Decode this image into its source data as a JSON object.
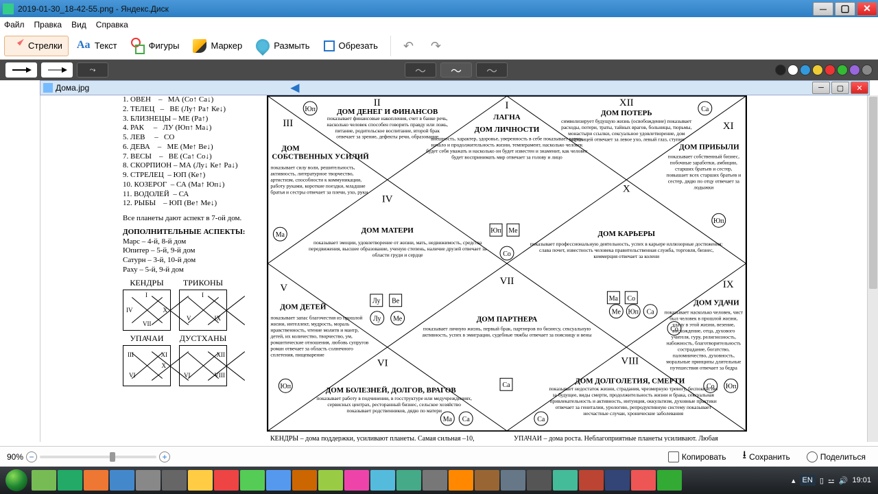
{
  "window": {
    "title": "2019-01-30_18-42-55.png - Яндекс.Диск",
    "menu": [
      "Файл",
      "Правка",
      "Вид",
      "Справка"
    ],
    "tools": {
      "arrows": "Стрелки",
      "text": "Текст",
      "shapes": "Фигуры",
      "marker": "Маркер",
      "blur": "Размыть",
      "crop": "Обрезать"
    },
    "tab": "Дома.jpg",
    "zoompct": "90%",
    "bottom": {
      "copy": "Копировать",
      "save": "Сохранить",
      "share": "Поделиться"
    }
  },
  "colors": {
    "titlebar": "#3a8bd0",
    "toolbar_sel": "#fceee0",
    "subbar": "#4a4a4a",
    "dots": [
      "#222",
      "#fff",
      "#39d",
      "#ec3",
      "#e33",
      "#3b3",
      "#96d",
      "#888"
    ]
  },
  "doc": {
    "zodiac": [
      "1. ОВЕН    –   МА (Co↑ Ca↓)",
      "2. ТЕЛЕЦ   –   ВЕ (Лу↑ Ра↑ Ке↓)",
      "3. БЛИЗНЕЦЫ – МЕ (Ра↑)",
      "4. РАК     –   ЛУ (Юп↑ Ма↓)",
      "5. ЛЕВ     –   СО",
      "6. ДЕВА    –   МЕ (Ме↑ Ве↓)",
      "7. ВЕСЫ    –   ВЕ (Са↑ Со↓)",
      "8. СКОРПИОН – МА (Лу↓ Ке↑ Ра↓)",
      "9. СТРЕЛЕЦ  – ЮП (Ке↑)",
      "10. КОЗЕРОГ  – СА (Ма↑ Юп↓)",
      "11. ВОДОЛЕЙ  – СА",
      "12. РЫБЫ    – ЮП (Ве↑ Ме↓)"
    ],
    "note1": "Все планеты дают аспект в 7-ой дом.",
    "aspects_h": "ДОПОЛНИТЕЛЬНЫЕ АСПЕКТЫ:",
    "aspects": [
      "Марс – 4-й, 8-й дом",
      "Юпитер – 5-й, 9-й дом",
      "Сатурн – 3-й, 10-й дом",
      "Раху – 5-й, 9-й дом"
    ],
    "groups": {
      "kendry": "КЕНДРЫ",
      "trikony": "ТРИКОНЫ",
      "upachi": "УПАЧАИ",
      "dusthany": "ДУСТХАНЫ"
    },
    "houses": {
      "1": {
        "num": "I",
        "title": "ЛАГНА",
        "sub": "ДОМ ЛИЧНОСТИ",
        "txt": "внешность, характер, здоровье, уверенность в себе показывает карму, начало и продолжительность жизни, темперамент, насколько человек будет себя уважать и насколько он будет известен и знаменит, как человек будет воспринимать мир отвечает за голову и лицо"
      },
      "2": {
        "num": "II",
        "title": "ДОМ ДЕНЕГ И ФИНАНСОВ",
        "txt": "показывает финансовые накопления, счет в банке речь, насколько человек способен говорить правду или ложь, питание, родительское воспитание, второй брак отвечает за зрение, дефекты речи, образование"
      },
      "3": {
        "num": "III",
        "title": "ДОМ СОБСТВЕННЫХ УСИЛИЙ",
        "txt": "показывает силу воли, решительность, активность, литературное творчество, артистизм, способности к коммуникации, работу руками, короткие поездки, младшие братья и сестры отвечает за плечи, ухо, руки"
      },
      "4": {
        "num": "IV",
        "title": "ДОМ МАТЕРИ",
        "txt": "показывает эмоции, удовлетворение от жизни, мать, недвижимость, средства передвижения, высшее образование, ученую степень, наличие друзей отвечает за области груди и сердце"
      },
      "5": {
        "num": "V",
        "title": "ДОМ ДЕТЕЙ",
        "txt": "показывает запас благочестия из прошлой жизни, интеллект, мудрость, мораль нравственность, чтение молитв и мантр, детей, их количество, творчество, ум, романтические отношения, любовь супругов роман отвечает за область солнечного сплетения, пищеварение"
      },
      "6": {
        "num": "VI",
        "title": "ДОМ БОЛЕЗНЕЙ, ДОЛГОВ, ВРАГОВ",
        "txt": "показывает работу в подчинении, в госструктуре или медучреждениях, сервисных центрах, ресторанный бизнес, сельское хозяйство показывает родственников, дядю по матери"
      },
      "7": {
        "num": "VII",
        "title": "ДОМ ПАРТНЕРА",
        "txt": "показывает личную жизнь, первый брак, партнеров по бизнесу, сексуальную активность, успех в эмиграции, судебные тяжбы отвечает за поясницу и вены"
      },
      "8": {
        "num": "VIII",
        "title": "ДОМ ДОЛГОЛЕТИЯ, СМЕРТИ",
        "txt": "показывает недостаток жизни, страдания, чрезмерную тревогу, беспокойство за будущее, виды смерти, продолжительность жизни и брака, сексуальная привлекательность и активность, интуиция, оккультизм, духовные практики отвечает за гениталии, урологию, репродуктивную систему показывает несчастные случаи, хронические заболевания"
      },
      "9": {
        "num": "IX",
        "title": "ДОМ УДАЧИ",
        "txt": "показывает насколько человек, чист был человек в прошлой жизни, удачу в этой жизни, везение, восхождение, отца, духового учителя, гуру, религиозность, набожность, благотворительность сострадание, богатство, паломничество, духовность, моральные принципы длительные путешествия отвечает за бедра"
      },
      "10": {
        "num": "X",
        "title": "ДОМ КАРЬЕРЫ",
        "txt": "показывает профессиональную деятельность, успех в карьере иллюзорные достижения: слава почет, известность человека правительственная служба, торговля, бизнес, коммерция отвечает за колени"
      },
      "11": {
        "num": "XI",
        "title": "ДОМ ПРИБЫЛИ",
        "txt": "показывает собственный бизнес, побочные заработки, амбиции, старших братьев и сестер, повышает всех старших братьев и сестер, дядю по отцу отвечает за лодыжки"
      },
      "12": {
        "num": "XII",
        "title": "ДОМ ПОТЕРЬ",
        "txt": "символизирует будущую жизнь (освобождение) показывает расходы, потери, траты, тайных врагов, больницы, тюрьмы, монастыри ссылки, сексуальное удовлетворение, дом заграницей отвечает за левое ухо, левый глаз, ступни"
      }
    },
    "footer1": "КЕНДРЫ – дома поддержки, усиливают планеты. Самая сильная –10,",
    "footer2": "УПАЧАИ – дома роста. Неблагоприятные планеты усиливают. Любая"
  },
  "taskbar": {
    "lang": "EN",
    "time": "19:01",
    "icons_bg": [
      "#7b5",
      "#2a6",
      "#e73",
      "#48c",
      "#888",
      "#666",
      "#fc4",
      "#e44",
      "#5c5",
      "#59e",
      "#c60",
      "#9c4",
      "#e4a",
      "#5bd",
      "#4a8",
      "#777",
      "#f80",
      "#963",
      "#678",
      "#555",
      "#4b9",
      "#b43",
      "#347",
      "#e55",
      "#3a3"
    ]
  }
}
